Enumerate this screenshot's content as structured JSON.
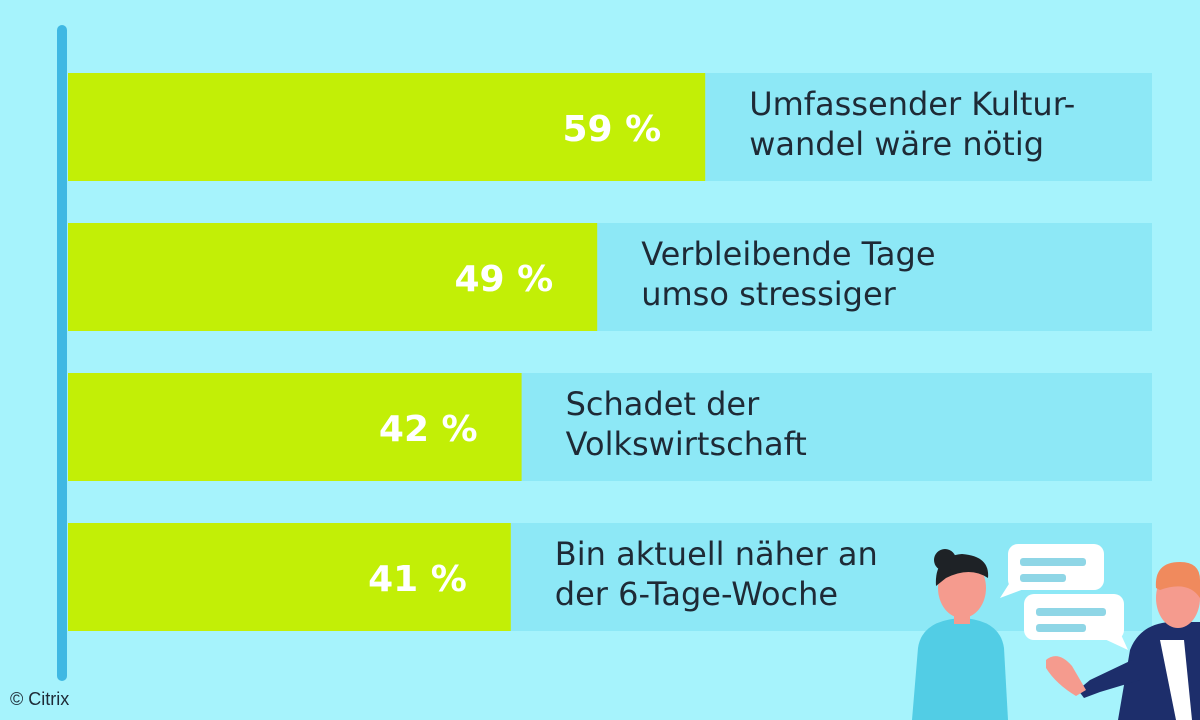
{
  "chart_data": {
    "type": "bar",
    "orientation": "horizontal",
    "categories": [
      [
        "Umfassender Kultur-",
        "wandel wäre nötig"
      ],
      [
        "Verbleibende Tage",
        "umso stressiger"
      ],
      [
        "Schadet der",
        "Volkswirtschaft"
      ],
      [
        "Bin aktuell näher an",
        "der 6-Tage-Woche"
      ]
    ],
    "values": [
      59,
      49,
      42,
      41
    ],
    "value_labels": [
      "59 %",
      "49 %",
      "42 %",
      "41 %"
    ],
    "xlim": [
      0,
      100
    ],
    "unit": "%",
    "grid": false,
    "legend": "none"
  },
  "colors": {
    "background": "#a6f3fc",
    "bar_fill": "#c2ef06",
    "bar_track": "#8de8f6",
    "axis_line": "#3fb8e3",
    "value_text": "#ffffff",
    "label_text": "#1e2a36",
    "person_skin": "#f59b8e",
    "person_shirt": "#52cde5",
    "person_jacket": "#1d2e6b",
    "hair_dark": "#1e2226",
    "hair_light": "#f08a5d",
    "bubble": "#ffffff",
    "bubble_line": "#8fd6e6"
  },
  "illustration": {
    "icon": "two-people-talking-icon"
  },
  "credit": "© Citrix"
}
